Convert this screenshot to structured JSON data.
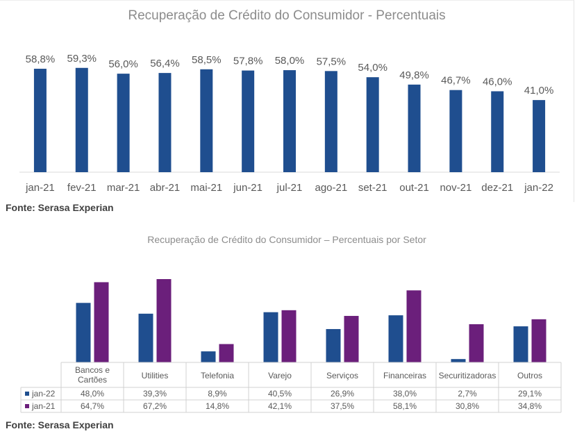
{
  "charts": [
    {
      "title": "Recuperação de Crédito do Consumidor - Percentuais",
      "source": "Fonte: Serasa Experian"
    },
    {
      "title": "Recuperação de Crédito do Consumidor – Percentuais por Setor",
      "source": "Fonte: Serasa Experian"
    }
  ],
  "colors": {
    "blue": "#1F4E8F",
    "purple": "#6B1F7B",
    "axis_text": "#595959",
    "label_text": "#595959"
  },
  "chart_data": [
    {
      "type": "bar",
      "title": "Recuperação de Crédito do Consumidor - Percentuais",
      "categories": [
        "jan-21",
        "fev-21",
        "mar-21",
        "abr-21",
        "mai-21",
        "jun-21",
        "jul-21",
        "ago-21",
        "set-21",
        "out-21",
        "nov-21",
        "dez-21",
        "jan-22"
      ],
      "values": [
        58.8,
        59.3,
        56.0,
        56.4,
        58.5,
        57.8,
        58.0,
        57.5,
        54.0,
        49.8,
        46.7,
        46.0,
        41.0
      ],
      "value_labels": [
        "58,8%",
        "59,3%",
        "56,0%",
        "56,4%",
        "58,5%",
        "57,8%",
        "58,0%",
        "57,5%",
        "54,0%",
        "49,8%",
        "46,7%",
        "46,0%",
        "41,0%"
      ],
      "ylim": [
        0,
        60
      ],
      "grid": false,
      "legend": "none"
    },
    {
      "type": "bar",
      "title": "Recuperação de Crédito do Consumidor – Percentuais por Setor",
      "categories": [
        "Bancos e Cartões",
        "Utilities",
        "Telefonia",
        "Varejo",
        "Serviços",
        "Financeiras",
        "Securitizadoras",
        "Outros"
      ],
      "category_lines": [
        [
          "Bancos e",
          "Cartões"
        ],
        [
          "Utilities"
        ],
        [
          "Telefonia"
        ],
        [
          "Varejo"
        ],
        [
          "Serviços"
        ],
        [
          "Financeiras"
        ],
        [
          "Securitizadoras"
        ],
        [
          "Outros"
        ]
      ],
      "series": [
        {
          "name": "jan-22",
          "values": [
            48.0,
            39.3,
            8.9,
            40.5,
            26.9,
            38.0,
            2.7,
            29.1
          ],
          "labels": [
            "48,0%",
            "39,3%",
            "8,9%",
            "40,5%",
            "26,9%",
            "38,0%",
            "2,7%",
            "29,1%"
          ]
        },
        {
          "name": "jan-21",
          "values": [
            64.7,
            67.2,
            14.8,
            42.1,
            37.5,
            58.1,
            30.8,
            34.8
          ],
          "labels": [
            "64,7%",
            "67,2%",
            "14,8%",
            "42,1%",
            "37,5%",
            "58,1%",
            "30,8%",
            "34,8%"
          ]
        }
      ],
      "ylim": [
        0,
        70
      ],
      "grid": false,
      "legend": "data table"
    }
  ]
}
